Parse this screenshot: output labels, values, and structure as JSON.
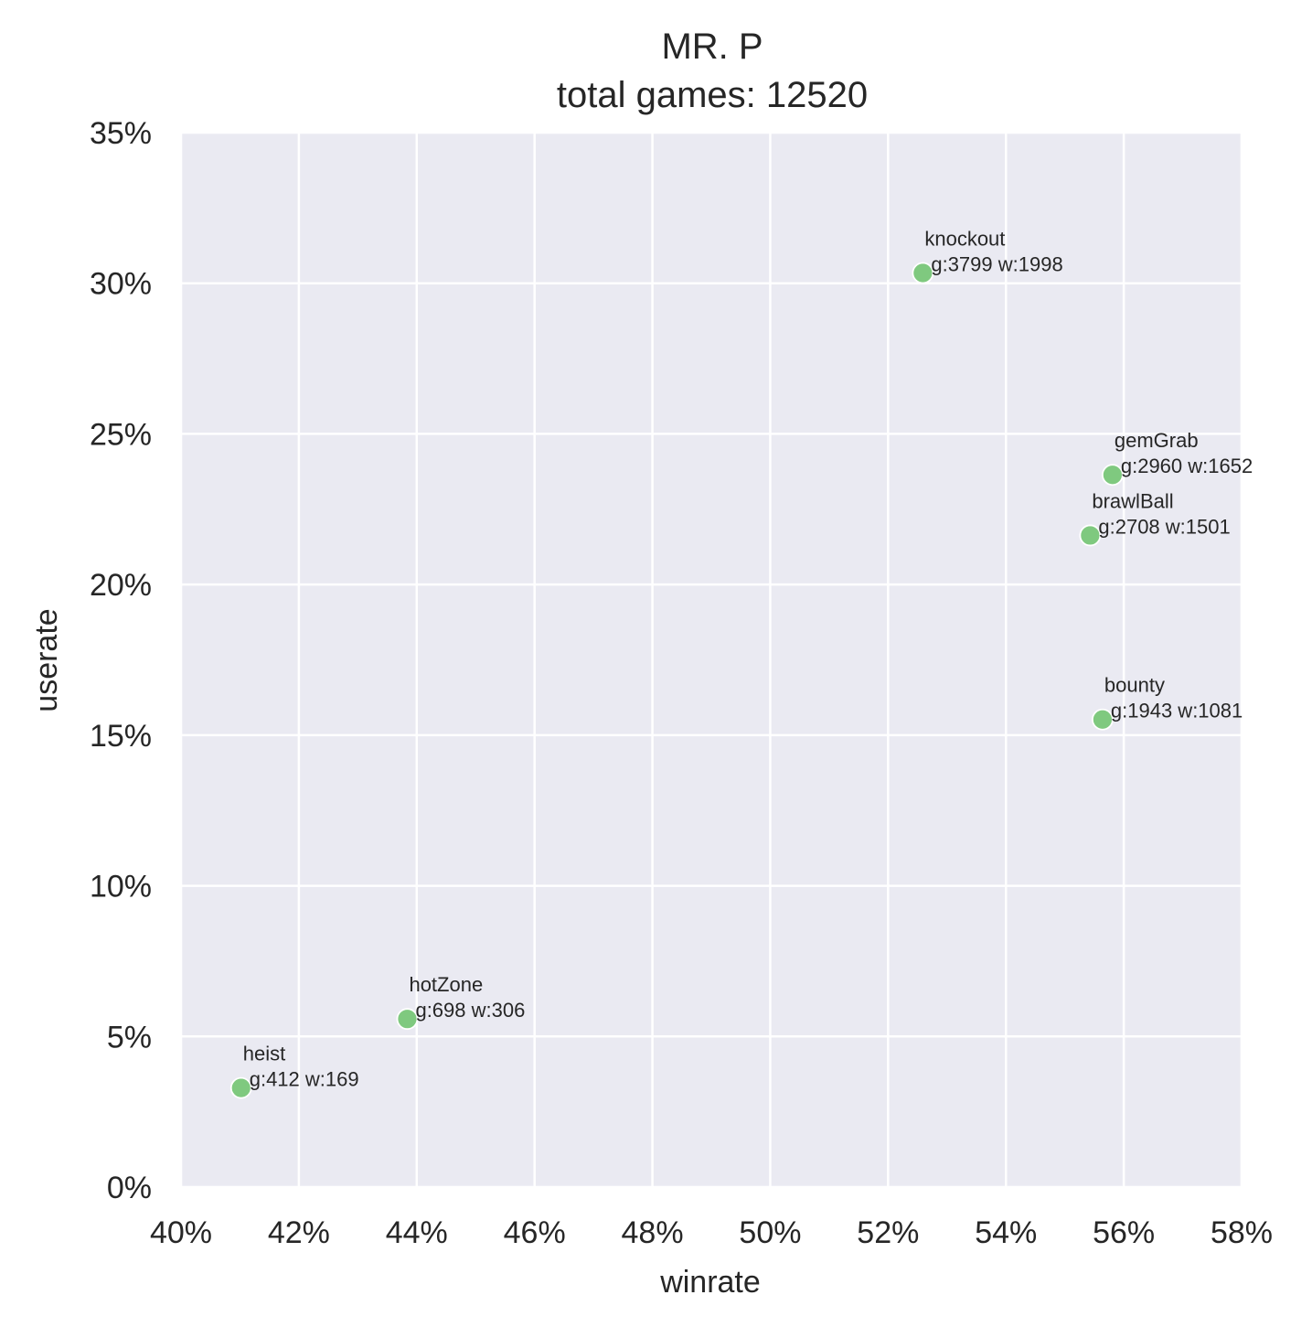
{
  "chart_data": {
    "type": "scatter",
    "title": "MR. P",
    "subtitle": "total games: 12520",
    "xlabel": "winrate",
    "ylabel": "userate",
    "xlim": [
      0.4,
      0.58
    ],
    "ylim": [
      0.0,
      0.35
    ],
    "x_ticks": [
      0.4,
      0.42,
      0.44,
      0.46,
      0.48,
      0.5,
      0.52,
      0.54,
      0.56,
      0.58
    ],
    "x_tick_labels": [
      "40%",
      "42%",
      "44%",
      "46%",
      "48%",
      "50%",
      "52%",
      "54%",
      "56%",
      "58%"
    ],
    "y_ticks": [
      0.0,
      0.05,
      0.1,
      0.15,
      0.2,
      0.25,
      0.3,
      0.35
    ],
    "y_tick_labels": [
      "0%",
      "5%",
      "10%",
      "15%",
      "20%",
      "25%",
      "30%",
      "35%"
    ],
    "grid": true,
    "background_color": "#eaeaf2",
    "grid_color": "#ffffff",
    "marker_color": "#7fc97f",
    "points": [
      {
        "name": "knockout",
        "label": "g:3799 w:1998",
        "x": 0.5259,
        "y": 0.3034
      },
      {
        "name": "gemGrab",
        "label": "g:2960 w:1652",
        "x": 0.5581,
        "y": 0.2364
      },
      {
        "name": "brawlBall",
        "label": "g:2708 w:1501",
        "x": 0.5543,
        "y": 0.2163
      },
      {
        "name": "bounty",
        "label": "g:1943 w:1081",
        "x": 0.5564,
        "y": 0.1552
      },
      {
        "name": "hotZone",
        "label": "g:698 w:306",
        "x": 0.4384,
        "y": 0.0558
      },
      {
        "name": "heist",
        "label": "g:412 w:169",
        "x": 0.4102,
        "y": 0.0329
      }
    ]
  }
}
